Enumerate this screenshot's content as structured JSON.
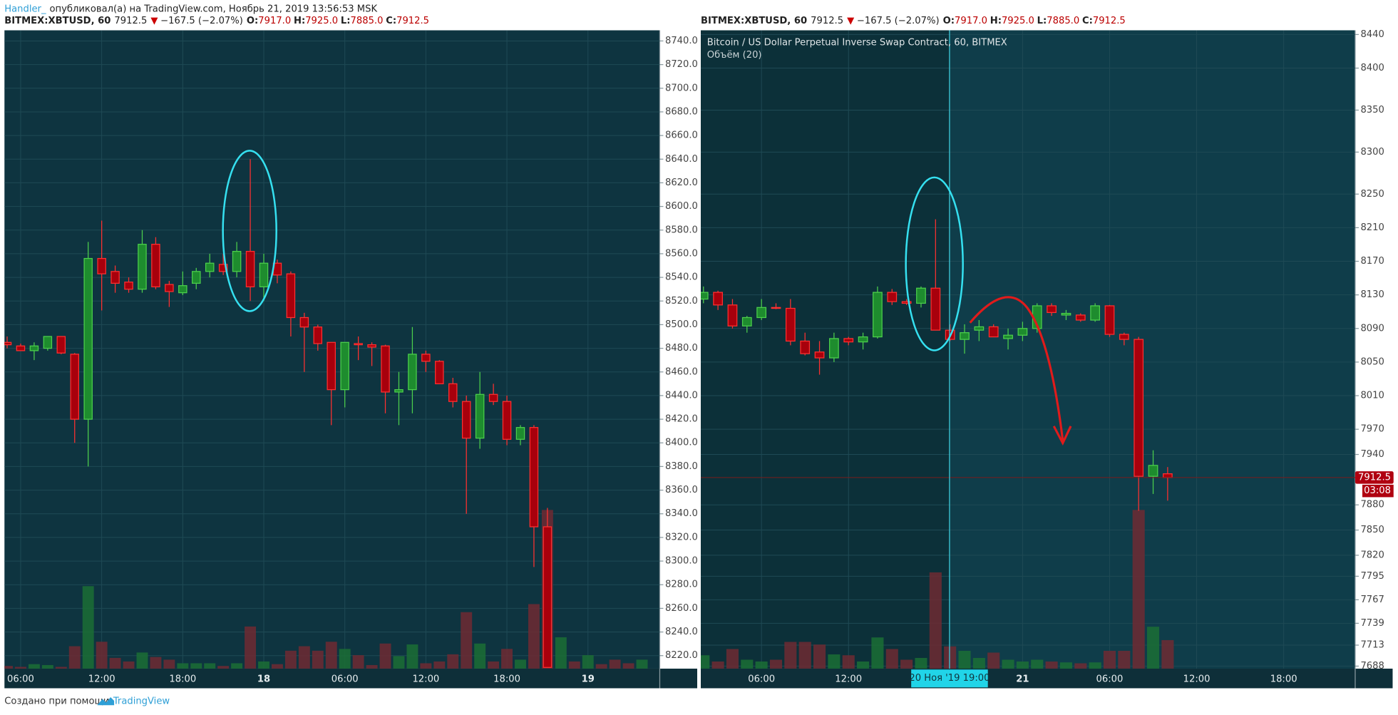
{
  "header": {
    "author": "Handler_",
    "published": "опубликовал(а) на TradingView.com, Ноябрь 21, 2019 13:56:53 MSK"
  },
  "footer": {
    "made_with": "Создано при помощи",
    "brand": "TradingView"
  },
  "chart_data": [
    {
      "type": "candlestick",
      "legend": {
        "symbol": "BITMEX:XBTUSD, 60",
        "price": "7912.5",
        "arrow": "▼",
        "change": "−167.5 (−2.07%)",
        "o_label": "O:",
        "o": "7917.0",
        "h_label": "H:",
        "h": "7925.0",
        "l_label": "L:",
        "l": "7885.0",
        "c_label": "C:",
        "c": "7912.5"
      },
      "up_color": "#1e8c2e",
      "down_color": "#a8000c",
      "categories": [
        null,
        "06:00",
        null,
        null,
        null,
        null,
        null,
        "12:00",
        null,
        null,
        null,
        null,
        null,
        "18:00",
        null,
        null,
        null,
        null,
        null,
        "18",
        null,
        null,
        null,
        null,
        null,
        "06:00",
        null,
        null,
        null,
        null,
        null,
        "12:00",
        null,
        null,
        null,
        null,
        null,
        "18:00",
        null,
        null,
        null,
        null,
        null,
        "19",
        null,
        null,
        null,
        null
      ],
      "open": [
        8485,
        8482,
        8478,
        8480,
        8490,
        8475,
        8420,
        8556,
        8545,
        8536,
        8530,
        8568,
        8534,
        8527,
        8535,
        8545,
        8551,
        8545,
        8562,
        8532,
        8552,
        8543,
        8506,
        8498,
        8485,
        8445,
        8484,
        8483,
        8482,
        8443,
        8445,
        8475,
        8469,
        8450,
        8435,
        8404,
        8441,
        8435,
        8403,
        8413,
        8329,
        null,
        null,
        null,
        null,
        null,
        null,
        null
      ],
      "high": [
        8490,
        8484,
        8485,
        8490,
        8490,
        8476,
        8570,
        8588,
        8550,
        8540,
        8580,
        8574,
        8537,
        8545,
        8548,
        8560,
        8560,
        8570,
        8640,
        8560,
        8555,
        8545,
        8510,
        8500,
        8485,
        8485,
        8490,
        8485,
        8483,
        8460,
        8498,
        8478,
        8470,
        8455,
        8440,
        8460,
        8450,
        8440,
        8415,
        8415,
        8345,
        null,
        null,
        null,
        null,
        null,
        null,
        null
      ],
      "low": [
        8480,
        8478,
        8470,
        8478,
        8475,
        8400,
        8380,
        8512,
        8527,
        8527,
        8527,
        8530,
        8515,
        8525,
        8530,
        8540,
        8542,
        8540,
        8520,
        8520,
        8535,
        8490,
        8460,
        8478,
        8415,
        8430,
        8470,
        8465,
        8425,
        8415,
        8425,
        8460,
        8450,
        8430,
        8340,
        8395,
        8432,
        8398,
        8398,
        8295,
        8210,
        null,
        null,
        null,
        null,
        null,
        null,
        null
      ],
      "close": [
        8483,
        8478,
        8482,
        8490,
        8476,
        8420,
        8556,
        8543,
        8535,
        8530,
        8568,
        8532,
        8528,
        8533,
        8545,
        8552,
        8545,
        8562,
        8532,
        8552,
        8542,
        8506,
        8498,
        8484,
        8445,
        8485,
        8483,
        8481,
        8443,
        8445,
        8475,
        8469,
        8450,
        8435,
        8404,
        8441,
        8435,
        8403,
        8413,
        8329,
        8210,
        null,
        null,
        null,
        null,
        null,
        null,
        null
      ],
      "volume": [
        3,
        2,
        5,
        4,
        2,
        25,
        92,
        30,
        12,
        8,
        18,
        13,
        10,
        6,
        6,
        6,
        3,
        6,
        47,
        8,
        5,
        20,
        25,
        20,
        30,
        22,
        15,
        4,
        28,
        14,
        27,
        6,
        8,
        16,
        63,
        28,
        8,
        22,
        10,
        72,
        177,
        35,
        8,
        15,
        5,
        10,
        6,
        10
      ],
      "volume_colors": [
        "#6e2a32",
        "#6e2a32",
        "#1b6e35",
        "#1b6e35",
        "#6e2a32",
        "#6e2a32",
        "#1b6e35",
        "#6e2a32",
        "#6e2a32",
        "#6e2a32",
        "#1b6e35",
        "#6e2a32",
        "#6e2a32",
        "#1b6e35",
        "#1b6e35",
        "#1b6e35",
        "#6e2a32",
        "#1b6e35",
        "#6e2a32",
        "#1b6e35",
        "#6e2a32",
        "#6e2a32",
        "#6e2a32",
        "#6e2a32",
        "#6e2a32",
        "#1b6e35",
        "#6e2a32",
        "#6e2a32",
        "#6e2a32",
        "#1b6e35",
        "#1b6e35",
        "#6e2a32",
        "#6e2a32",
        "#6e2a32",
        "#6e2a32",
        "#1b6e35",
        "#6e2a32",
        "#6e2a32",
        "#1b6e35",
        "#6e2a32",
        "#6e2a32",
        "#1b6e35",
        "#6e2a32",
        "#1b6e35",
        "#6e2a32",
        "#6e2a32",
        "#6e2a32",
        "#1b6e35"
      ],
      "ylim": [
        8209,
        8749
      ],
      "yticks": [
        {
          "value": 8220,
          "label": "8220.0"
        },
        {
          "value": 8240,
          "label": "8240.0"
        },
        {
          "value": 8260,
          "label": "8260.0"
        },
        {
          "value": 8280,
          "label": "8280.0"
        },
        {
          "value": 8300,
          "label": "8300.0"
        },
        {
          "value": 8320,
          "label": "8320.0"
        },
        {
          "value": 8340,
          "label": "8340.0"
        },
        {
          "value": 8360,
          "label": "8360.0"
        },
        {
          "value": 8380,
          "label": "8380.0"
        },
        {
          "value": 8400,
          "label": "8400.0"
        },
        {
          "value": 8420,
          "label": "8420.0"
        },
        {
          "value": 8440,
          "label": "8440.0"
        },
        {
          "value": 8460,
          "label": "8460.0"
        },
        {
          "value": 8480,
          "label": "8480.0"
        },
        {
          "value": 8500,
          "label": "8500.0"
        },
        {
          "value": 8520,
          "label": "8520.0"
        },
        {
          "value": 8540,
          "label": "8540.0"
        },
        {
          "value": 8560,
          "label": "8560.0"
        },
        {
          "value": 8580,
          "label": "8580.0"
        },
        {
          "value": 8600,
          "label": "8600.0"
        },
        {
          "value": 8620,
          "label": "8620.0"
        },
        {
          "value": 8640,
          "label": "8640.0"
        },
        {
          "value": 8660,
          "label": "8660.0"
        },
        {
          "value": 8680,
          "label": "8680.0"
        },
        {
          "value": 8700,
          "label": "8700.0"
        },
        {
          "value": 8720,
          "label": "8720.0"
        },
        {
          "value": 8740,
          "label": "8740.0"
        }
      ],
      "grid": true
    },
    {
      "type": "candlestick",
      "legend": {
        "symbol": "BITMEX:XBTUSD, 60",
        "price": "7912.5",
        "arrow": "▼",
        "change": "−167.5 (−2.07%)",
        "o_label": "O:",
        "o": "7917.0",
        "h_label": "H:",
        "h": "7925.0",
        "l_label": "L:",
        "l": "7885.0",
        "c_label": "C:",
        "c": "7912.5"
      },
      "title": "Bitcoin / US Dollar Perpetual Inverse Swap Contract, 60, BITMEX",
      "subtitle": "Объём (20)",
      "crosshair_label": "20 Ноя '19   19:00",
      "last_price": 7912.5,
      "countdown": "03:08",
      "up_color": "#1e8c2e",
      "down_color": "#a8000c",
      "categories": [
        null,
        null,
        null,
        null,
        "06:00",
        null,
        null,
        null,
        null,
        null,
        "12:00",
        null,
        null,
        null,
        null,
        null,
        null,
        null,
        null,
        null,
        null,
        null,
        "21",
        null,
        null,
        null,
        null,
        null,
        "06:00",
        null,
        null,
        null,
        null,
        null,
        "12:00",
        null,
        null,
        null,
        null,
        null,
        "18:00"
      ],
      "open": [
        8125,
        8133,
        8118,
        8093,
        8103,
        8115,
        8114,
        8075,
        8062,
        8055,
        8078,
        8074,
        8080,
        8133,
        8122,
        8120,
        8138,
        8088,
        8077,
        8088,
        8092,
        8078,
        8082,
        8090,
        8117,
        8106,
        8106,
        8100,
        8117,
        8083,
        8077,
        7914,
        7917,
        null,
        null,
        null,
        null,
        null,
        null,
        null,
        null
      ],
      "high": [
        8140,
        8135,
        8125,
        8105,
        8125,
        8120,
        8125,
        8085,
        8075,
        8085,
        8080,
        8085,
        8140,
        8137,
        8125,
        8140,
        8220,
        8095,
        8095,
        8100,
        8095,
        8090,
        8098,
        8120,
        8120,
        8112,
        8108,
        8120,
        8118,
        8085,
        8080,
        7945,
        7925,
        null,
        null,
        null,
        null,
        null,
        null,
        null,
        null
      ],
      "low": [
        8120,
        8112,
        8090,
        8085,
        8100,
        8113,
        8070,
        8058,
        8035,
        8050,
        8070,
        8065,
        8078,
        8118,
        8118,
        8115,
        8088,
        8075,
        8060,
        8075,
        8080,
        8065,
        8075,
        8085,
        8105,
        8100,
        8098,
        8098,
        8080,
        8070,
        7873,
        7893,
        7885,
        null,
        null,
        null,
        null,
        null,
        null,
        null,
        null
      ],
      "close": [
        8133,
        8118,
        8093,
        8103,
        8115,
        8114,
        8075,
        8060,
        8055,
        8078,
        8074,
        8080,
        8133,
        8122,
        8120,
        8138,
        8088,
        8077,
        8085,
        8092,
        8080,
        8082,
        8090,
        8117,
        8109,
        8108,
        8100,
        8117,
        8083,
        8077,
        7914,
        7927,
        7912.5,
        null,
        null,
        null,
        null,
        null,
        null,
        null,
        null
      ],
      "volume": [
        15,
        8,
        22,
        10,
        8,
        10,
        30,
        30,
        27,
        16,
        15,
        8,
        35,
        22,
        10,
        12,
        108,
        25,
        20,
        12,
        18,
        10,
        8,
        10,
        8,
        7,
        6,
        7,
        20,
        20,
        178,
        47,
        32,
        null,
        null,
        null,
        null,
        null,
        null,
        null,
        null
      ],
      "volume_colors": [
        "#1b6e35",
        "#6e2a32",
        "#6e2a32",
        "#1b6e35",
        "#1b6e35",
        "#6e2a32",
        "#6e2a32",
        "#6e2a32",
        "#6e2a32",
        "#1b6e35",
        "#6e2a32",
        "#1b6e35",
        "#1b6e35",
        "#6e2a32",
        "#6e2a32",
        "#1b6e35",
        "#6e2a32",
        "#6e2a32",
        "#1b6e35",
        "#1b6e35",
        "#6e2a32",
        "#1b6e35",
        "#1b6e35",
        "#1b6e35",
        "#6e2a32",
        "#1b6e35",
        "#6e2a32",
        "#1b6e35",
        "#6e2a32",
        "#6e2a32",
        "#6e2a32",
        "#1b6e35",
        "#6e2a32",
        null,
        null,
        null,
        null,
        null,
        null,
        null,
        null
      ],
      "ylim": [
        7685,
        8445
      ],
      "yticks": [
        8440,
        8400,
        8350,
        8300,
        8250,
        8210,
        8170,
        8130,
        8090,
        8050,
        8010,
        7970,
        7940,
        7880,
        7850,
        7820,
        7795,
        7767,
        7739,
        7713,
        7688
      ],
      "grid": true
    }
  ]
}
